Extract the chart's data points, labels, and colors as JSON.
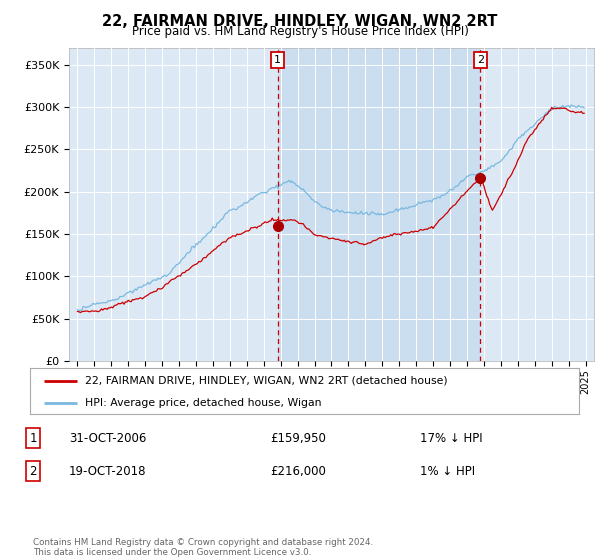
{
  "title": "22, FAIRMAN DRIVE, HINDLEY, WIGAN, WN2 2RT",
  "subtitle": "Price paid vs. HM Land Registry's House Price Index (HPI)",
  "bg_color": "#dce9f5",
  "hpi_color": "#7ab8e0",
  "price_color": "#cc0000",
  "vline_color": "#cc0000",
  "shade_color": "#c8ddf0",
  "ylim": [
    0,
    370000
  ],
  "yticks": [
    0,
    50000,
    100000,
    150000,
    200000,
    250000,
    300000,
    350000
  ],
  "ytick_labels": [
    "£0",
    "£50K",
    "£100K",
    "£150K",
    "£200K",
    "£250K",
    "£300K",
    "£350K"
  ],
  "purchase1": {
    "date_x": 2006.83,
    "price": 159950,
    "label": "1",
    "date_str": "31-OCT-2006",
    "pct": "17% ↓ HPI"
  },
  "purchase2": {
    "date_x": 2018.79,
    "price": 216000,
    "label": "2",
    "date_str": "19-OCT-2018",
    "pct": "1% ↓ HPI"
  },
  "legend_entry1": "22, FAIRMAN DRIVE, HINDLEY, WIGAN, WN2 2RT (detached house)",
  "legend_entry2": "HPI: Average price, detached house, Wigan",
  "table_row1": [
    "1",
    "31-OCT-2006",
    "£159,950",
    "17% ↓ HPI"
  ],
  "table_row2": [
    "2",
    "19-OCT-2018",
    "£216,000",
    "1% ↓ HPI"
  ],
  "footer": "Contains HM Land Registry data © Crown copyright and database right 2024.\nThis data is licensed under the Open Government Licence v3.0.",
  "xmin": 1994.5,
  "xmax": 2025.5
}
